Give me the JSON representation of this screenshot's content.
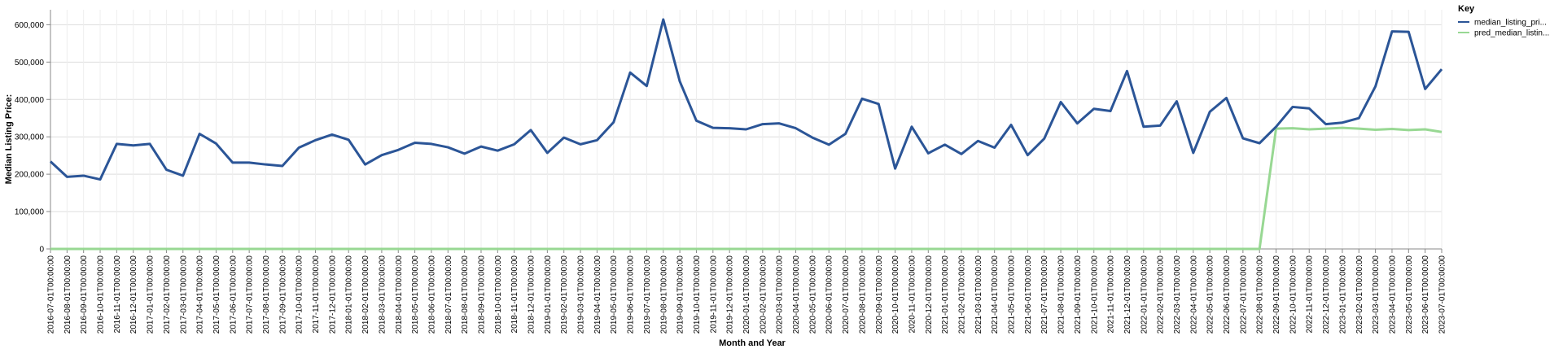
{
  "chart_data": {
    "type": "line",
    "title": "",
    "xlabel": "Month and Year",
    "ylabel": "Median Listing Price:",
    "ylim": [
      0,
      640000
    ],
    "yticks": [
      0,
      100000,
      200000,
      300000,
      400000,
      500000,
      600000
    ],
    "ytick_labels": [
      "0",
      "100,000",
      "200,000",
      "300,000",
      "400,000",
      "500,000",
      "600,000"
    ],
    "grid": true,
    "legend": {
      "title": "Key",
      "position": "top-right"
    },
    "x": [
      "2016-07-01T00:00:00",
      "2016-08-01T00:00:00",
      "2016-09-01T00:00:00",
      "2016-10-01T00:00:00",
      "2016-11-01T00:00:00",
      "2016-12-01T00:00:00",
      "2017-01-01T00:00:00",
      "2017-02-01T00:00:00",
      "2017-03-01T00:00:00",
      "2017-04-01T00:00:00",
      "2017-05-01T00:00:00",
      "2017-06-01T00:00:00",
      "2017-07-01T00:00:00",
      "2017-08-01T00:00:00",
      "2017-09-01T00:00:00",
      "2017-10-01T00:00:00",
      "2017-11-01T00:00:00",
      "2017-12-01T00:00:00",
      "2018-01-01T00:00:00",
      "2018-02-01T00:00:00",
      "2018-03-01T00:00:00",
      "2018-04-01T00:00:00",
      "2018-05-01T00:00:00",
      "2018-06-01T00:00:00",
      "2018-07-01T00:00:00",
      "2018-08-01T00:00:00",
      "2018-09-01T00:00:00",
      "2018-10-01T00:00:00",
      "2018-11-01T00:00:00",
      "2018-12-01T00:00:00",
      "2019-01-01T00:00:00",
      "2019-02-01T00:00:00",
      "2019-03-01T00:00:00",
      "2019-04-01T00:00:00",
      "2019-05-01T00:00:00",
      "2019-06-01T00:00:00",
      "2019-07-01T00:00:00",
      "2019-08-01T00:00:00",
      "2019-09-01T00:00:00",
      "2019-10-01T00:00:00",
      "2019-11-01T00:00:00",
      "2019-12-01T00:00:00",
      "2020-01-01T00:00:00",
      "2020-02-01T00:00:00",
      "2020-03-01T00:00:00",
      "2020-04-01T00:00:00",
      "2020-05-01T00:00:00",
      "2020-06-01T00:00:00",
      "2020-07-01T00:00:00",
      "2020-08-01T00:00:00",
      "2020-09-01T00:00:00",
      "2020-10-01T00:00:00",
      "2020-11-01T00:00:00",
      "2020-12-01T00:00:00",
      "2021-01-01T00:00:00",
      "2021-02-01T00:00:00",
      "2021-03-01T00:00:00",
      "2021-04-01T00:00:00",
      "2021-05-01T00:00:00",
      "2021-06-01T00:00:00",
      "2021-07-01T00:00:00",
      "2021-08-01T00:00:00",
      "2021-09-01T00:00:00",
      "2021-10-01T00:00:00",
      "2021-11-01T00:00:00",
      "2021-12-01T00:00:00",
      "2022-01-01T00:00:00",
      "2022-02-01T00:00:00",
      "2022-03-01T00:00:00",
      "2022-04-01T00:00:00",
      "2022-05-01T00:00:00",
      "2022-06-01T00:00:00",
      "2022-07-01T00:00:00",
      "2022-08-01T00:00:00",
      "2022-09-01T00:00:00",
      "2022-10-01T00:00:00",
      "2022-11-01T00:00:00",
      "2022-12-01T00:00:00",
      "2023-01-01T00:00:00",
      "2023-02-01T00:00:00",
      "2023-03-01T00:00:00",
      "2023-04-01T00:00:00",
      "2023-05-01T00:00:00",
      "2023-06-01T00:00:00",
      "2023-07-01T00:00:00"
    ],
    "series": [
      {
        "name": "median_listing_pri...",
        "color": "#2b5597",
        "values": [
          234000,
          193000,
          196000,
          186000,
          281000,
          277000,
          281000,
          212000,
          196000,
          308000,
          282000,
          231000,
          231000,
          226000,
          222000,
          271000,
          291000,
          306000,
          292000,
          226000,
          251000,
          265000,
          284000,
          281000,
          272000,
          255000,
          274000,
          263000,
          280000,
          318000,
          257000,
          298000,
          280000,
          291000,
          339000,
          472000,
          436000,
          614000,
          448000,
          343000,
          324000,
          323000,
          320000,
          334000,
          336000,
          323000,
          298000,
          279000,
          308000,
          402000,
          388000,
          215000,
          327000,
          256000,
          279000,
          254000,
          289000,
          271000,
          332000,
          251000,
          295000,
          393000,
          336000,
          375000,
          369000,
          476000,
          327000,
          330000,
          395000,
          257000,
          367000,
          404000,
          296000,
          283000,
          327000,
          380000,
          376000,
          334000,
          338000,
          350000,
          435000,
          582000,
          581000,
          428000,
          481000
        ]
      },
      {
        "name": "pred_median_listin...",
        "color": "#98d893",
        "values": [
          0,
          0,
          0,
          0,
          0,
          0,
          0,
          0,
          0,
          0,
          0,
          0,
          0,
          0,
          0,
          0,
          0,
          0,
          0,
          0,
          0,
          0,
          0,
          0,
          0,
          0,
          0,
          0,
          0,
          0,
          0,
          0,
          0,
          0,
          0,
          0,
          0,
          0,
          0,
          0,
          0,
          0,
          0,
          0,
          0,
          0,
          0,
          0,
          0,
          0,
          0,
          0,
          0,
          0,
          0,
          0,
          0,
          0,
          0,
          0,
          0,
          0,
          0,
          0,
          0,
          0,
          0,
          0,
          0,
          0,
          0,
          0,
          0,
          0,
          322000,
          323000,
          320000,
          322000,
          324000,
          322000,
          319000,
          321000,
          318000,
          320000,
          313000
        ]
      }
    ]
  }
}
